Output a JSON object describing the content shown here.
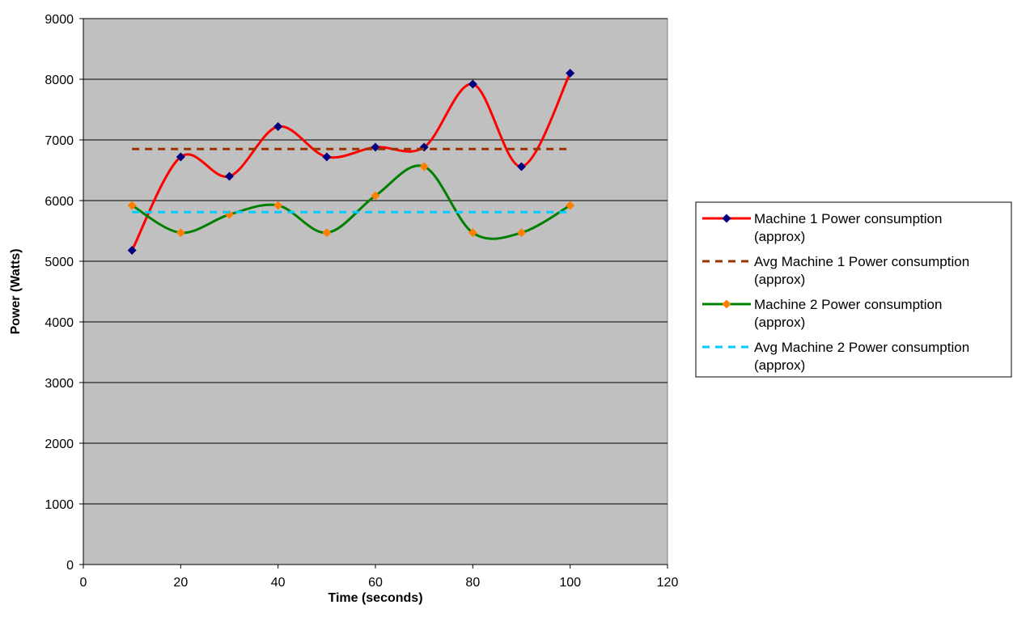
{
  "chart_data": {
    "type": "line",
    "title": "",
    "xlabel": "Time (seconds)",
    "ylabel": "Power (Watts)",
    "xlim": [
      0,
      120
    ],
    "ylim": [
      0,
      9000
    ],
    "xticks": [
      0,
      20,
      40,
      60,
      80,
      100,
      120
    ],
    "yticks": [
      0,
      1000,
      2000,
      3000,
      4000,
      5000,
      6000,
      7000,
      8000,
      9000
    ],
    "grid": "horizontal",
    "plot_background": "#c0c0c0",
    "legend_position": "right",
    "series": [
      {
        "name_lines": [
          "Machine 1 Power consumption",
          "(approx)"
        ],
        "style": "smooth-line-markers",
        "color": "#ff0000",
        "marker_color": "#000080",
        "x": [
          10,
          20,
          30,
          40,
          50,
          60,
          70,
          80,
          90,
          100
        ],
        "y": [
          5180,
          6720,
          6400,
          7220,
          6720,
          6880,
          6880,
          7920,
          6560,
          8100
        ]
      },
      {
        "name_lines": [
          "Avg Machine 1 Power consumption",
          "(approx)"
        ],
        "style": "dashed",
        "color": "#993300",
        "x": [
          10,
          100
        ],
        "y": [
          6850,
          6850
        ]
      },
      {
        "name_lines": [
          "Machine 2 Power consumption",
          "(approx)"
        ],
        "style": "smooth-line-markers",
        "color": "#008000",
        "marker_color": "#ff8000",
        "x": [
          10,
          20,
          30,
          40,
          50,
          60,
          70,
          80,
          90,
          100
        ],
        "y": [
          5920,
          5470,
          5770,
          5920,
          5470,
          6080,
          6560,
          5470,
          5470,
          5920
        ]
      },
      {
        "name_lines": [
          "Avg Machine 2 Power consumption",
          "(approx)"
        ],
        "style": "dashed",
        "color": "#00ccff",
        "x": [
          10,
          100
        ],
        "y": [
          5810,
          5810
        ]
      }
    ]
  }
}
